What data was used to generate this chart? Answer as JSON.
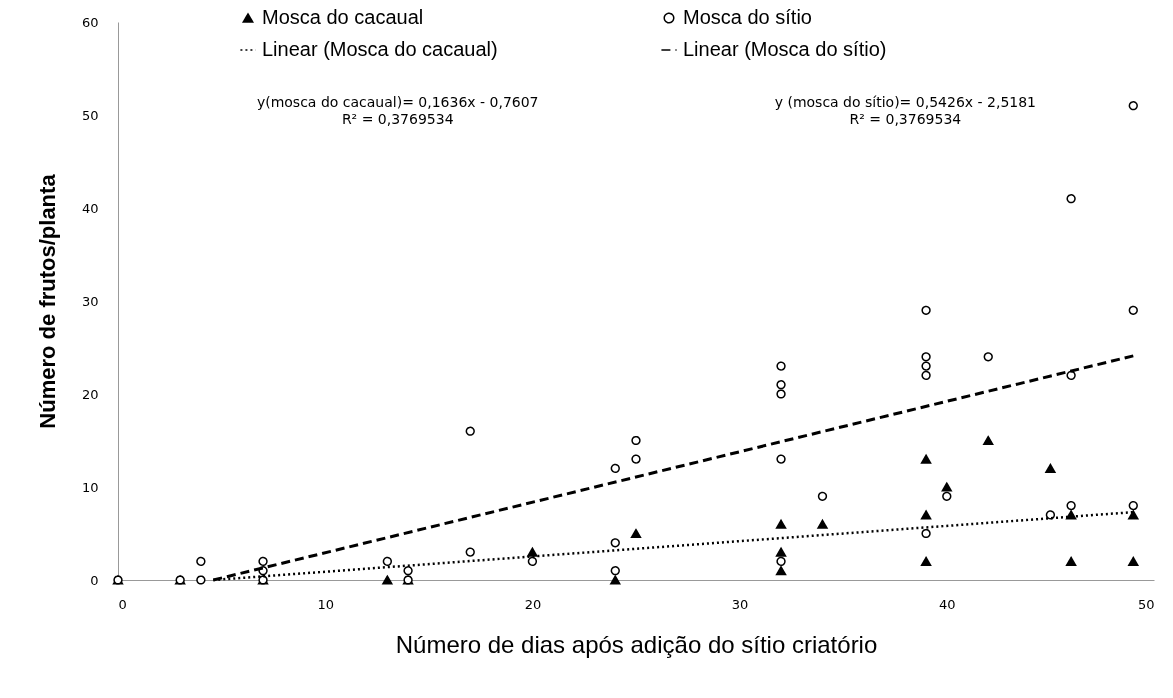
{
  "chart_data": {
    "type": "scatter",
    "xlabel": "Número de dias após adição do sítio criatório",
    "ylabel": "Número de frutos/planta",
    "xlim": [
      0,
      50
    ],
    "xticks": [
      0,
      10,
      20,
      30,
      40,
      50
    ],
    "ylim": [
      0,
      60
    ],
    "yticks": [
      0,
      10,
      20,
      30,
      40,
      50,
      60
    ],
    "grid": false,
    "legend": "top",
    "series": [
      {
        "name": "Mosca do cacaual",
        "marker": "triangle",
        "color": "#000000",
        "x": [
          0,
          3,
          7,
          13,
          14,
          20,
          24,
          25,
          32,
          32,
          32,
          34,
          39,
          39,
          39,
          40,
          42,
          45,
          46,
          46,
          49,
          49
        ],
        "values": [
          0,
          0,
          0,
          0,
          0,
          3,
          0,
          5,
          6,
          3,
          1,
          6,
          13,
          7,
          2,
          10,
          15,
          12,
          7,
          2,
          7,
          2
        ]
      },
      {
        "name": "Mosca do sítio",
        "marker": "circle",
        "color": "#000000",
        "x": [
          0,
          3,
          4,
          4,
          7,
          7,
          7,
          13,
          14,
          14,
          17,
          17,
          20,
          24,
          24,
          24,
          25,
          25,
          32,
          32,
          32,
          32,
          32,
          34,
          39,
          39,
          39,
          39,
          39,
          40,
          42,
          45,
          46,
          46,
          46,
          49,
          49,
          49
        ],
        "values": [
          0,
          0,
          2,
          0,
          2,
          1,
          0,
          2,
          1,
          0,
          16,
          3,
          2,
          12,
          4,
          1,
          15,
          13,
          23,
          21,
          20,
          13,
          2,
          9,
          29,
          24,
          23,
          22,
          5,
          9,
          24,
          7,
          41,
          22,
          8,
          51,
          29,
          8
        ]
      },
      {
        "name": "Linear (Mosca do cacaual)",
        "type": "line",
        "line_style": "dotted",
        "marker": "none",
        "color": "#000000",
        "x": [
          4.6,
          49
        ],
        "values": [
          0,
          7.3
        ]
      },
      {
        "name": "Linear (Mosca do sítio)",
        "type": "line",
        "line_style": "dashed",
        "marker": "none",
        "color": "#000000",
        "x": [
          4.6,
          49
        ],
        "values": [
          0,
          24.1
        ]
      }
    ],
    "annotations": [
      "y(mosca do cacaual)= 0,1636x - 0,7607\nR² = 0,3769534",
      "y (mosca do sítio)= 0,5426x - 2,5181\nR² = 0,3769534"
    ]
  }
}
